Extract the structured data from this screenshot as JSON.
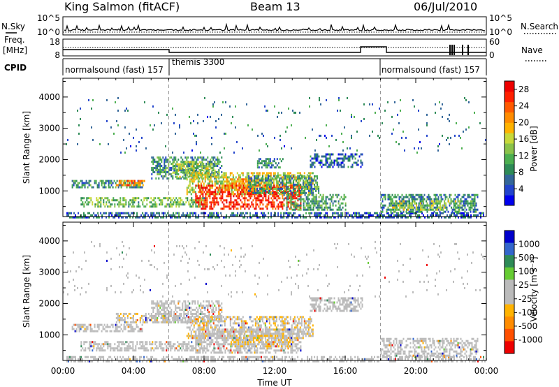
{
  "header": {
    "station": "King Salmon (fitACF)",
    "beam": "Beam 13",
    "date": "06/Jul/2010"
  },
  "side_labels": {
    "nsky": "N.Sky",
    "nsearch": "N.Search",
    "freq_top": "Freq.",
    "freq_unit": "[MHz]",
    "nave": "Nave",
    "cpid": "CPID"
  },
  "small_axes": {
    "noise_left_ticks": [
      "10^5",
      "10^0"
    ],
    "noise_right_ticks": [
      "10^5",
      "10^0"
    ],
    "freq_ticks": [
      "18",
      "8"
    ],
    "nave_ticks": [
      "60",
      "0"
    ]
  },
  "cpid_segments": [
    {
      "label": "normalsound (fast) 157",
      "start_hour": 0
    },
    {
      "label": "themis 3300",
      "start_hour": 6
    },
    {
      "label": "normalsound (fast) 157",
      "start_hour": 18
    }
  ],
  "axes": {
    "x_ticks": [
      "00:00",
      "04:00",
      "08:00",
      "12:00",
      "16:00",
      "20:00",
      "00:00"
    ],
    "x_label": "Time UT",
    "y_label": "Slant Range [km]",
    "y_ticks": [
      "4000",
      "3000",
      "2000",
      "1000"
    ]
  },
  "chart_data": [
    {
      "type": "heatmap",
      "title": "",
      "xlabel": "Time UT",
      "ylabel": "Slant Range [km]",
      "xlim": [
        0,
        24
      ],
      "ylim": [
        180,
        4600
      ],
      "colorbar": {
        "label": "Power [dB]",
        "ticks": [
          "28",
          "24",
          "20",
          "16",
          "12",
          "8",
          "4"
        ],
        "range": [
          0,
          30
        ],
        "colors": [
          "#0000ee",
          "#2244cc",
          "#336699",
          "#2e8b57",
          "#4caf50",
          "#8bc34a",
          "#c8d93a",
          "#ffb300",
          "#ff8c00",
          "#ff5a00",
          "#ff2000",
          "#ee0000"
        ]
      },
      "regions": [
        {
          "t": [
            0.2,
            24
          ],
          "r": [
            180,
            320
          ],
          "level": 6
        },
        {
          "t": [
            0.5,
            4.5
          ],
          "r": [
            1100,
            1350
          ],
          "level": 8
        },
        {
          "t": [
            3.0,
            4.6
          ],
          "r": [
            1150,
            1350
          ],
          "level": 22
        },
        {
          "t": [
            1.0,
            8.0
          ],
          "r": [
            500,
            800
          ],
          "level": 12
        },
        {
          "t": [
            5.0,
            9.0
          ],
          "r": [
            1400,
            2100
          ],
          "level": 9
        },
        {
          "t": [
            6.2,
            8.6
          ],
          "r": [
            1450,
            1950
          ],
          "level": 14
        },
        {
          "t": [
            7.0,
            14.2
          ],
          "r": [
            900,
            1600
          ],
          "level": 16
        },
        {
          "t": [
            7.5,
            13.5
          ],
          "r": [
            450,
            1200
          ],
          "level": 27
        },
        {
          "t": [
            9.0,
            11.5
          ],
          "r": [
            1000,
            1400
          ],
          "level": 20
        },
        {
          "t": [
            10.5,
            14.5
          ],
          "r": [
            900,
            1500
          ],
          "level": 9
        },
        {
          "t": [
            11.0,
            12.5
          ],
          "r": [
            1750,
            2050
          ],
          "level": 8
        },
        {
          "t": [
            14.0,
            17.0
          ],
          "r": [
            1750,
            2200
          ],
          "level": 6
        },
        {
          "t": [
            12.5,
            16.0
          ],
          "r": [
            400,
            900
          ],
          "level": 10
        },
        {
          "t": [
            18.0,
            23.5
          ],
          "r": [
            350,
            900
          ],
          "level": 8
        },
        {
          "t": [
            18.5,
            22.5
          ],
          "r": [
            380,
            700
          ],
          "level": 14
        },
        {
          "t": [
            0.0,
            24.0
          ],
          "r": [
            2200,
            4000
          ],
          "level": 7,
          "sparse": true
        }
      ]
    },
    {
      "type": "heatmap",
      "title": "",
      "xlabel": "Time UT",
      "ylabel": "Slant Range [km]",
      "xlim": [
        0,
        24
      ],
      "ylim": [
        180,
        4600
      ],
      "colorbar": {
        "label": "Velocity [m s⁻¹]",
        "ticks": [
          "1000",
          "500",
          "100",
          "25",
          "-25",
          "-100",
          "-500",
          "-1000"
        ],
        "range": [
          -1000,
          1000
        ],
        "colors": [
          "#0000cc",
          "#3366cc",
          "#2e8b57",
          "#66cc33",
          "#bbbbbb",
          "#bbbbbb",
          "#ffb300",
          "#ff8c00",
          "#ff5000",
          "#ee0000"
        ]
      },
      "regions": [
        {
          "t": [
            0.2,
            24
          ],
          "r": [
            180,
            320
          ],
          "level": 0
        },
        {
          "t": [
            0.5,
            4.5
          ],
          "r": [
            1100,
            1350
          ],
          "level": -40
        },
        {
          "t": [
            1.0,
            8.0
          ],
          "r": [
            500,
            800
          ],
          "level": 10
        },
        {
          "t": [
            3.0,
            6.5
          ],
          "r": [
            1400,
            1700
          ],
          "level": -120
        },
        {
          "t": [
            5.0,
            9.0
          ],
          "r": [
            1400,
            2100
          ],
          "level": -60
        },
        {
          "t": [
            7.0,
            14.2
          ],
          "r": [
            900,
            1600
          ],
          "level": -150
        },
        {
          "t": [
            7.5,
            13.5
          ],
          "r": [
            450,
            1200
          ],
          "level": -20
        },
        {
          "t": [
            9.5,
            13.0
          ],
          "r": [
            600,
            1000
          ],
          "level": -180
        },
        {
          "t": [
            14.0,
            17.0
          ],
          "r": [
            1750,
            2200
          ],
          "level": -30
        },
        {
          "t": [
            18.0,
            23.5
          ],
          "r": [
            350,
            900
          ],
          "level": 0
        },
        {
          "t": [
            0.0,
            24.0
          ],
          "r": [
            2200,
            4000
          ],
          "level": -80,
          "sparse": true
        }
      ]
    }
  ]
}
